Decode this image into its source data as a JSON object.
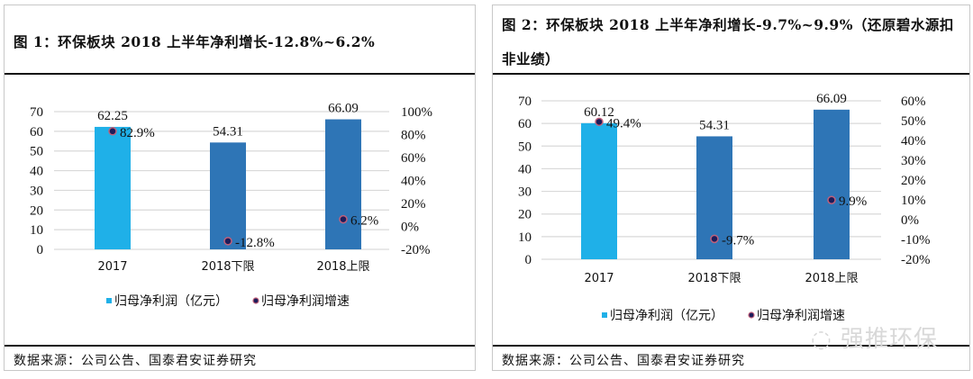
{
  "watermark": "强推环保",
  "colors": {
    "bar_2017": "#1fb0e8",
    "bar_2018": "#2e75b6",
    "dot_fill": "#1c1c5a",
    "dot_edge": "#c0607a",
    "grid": "#d9d9d9"
  },
  "chart_data": [
    {
      "type": "bar+scatter",
      "title": "图  1：环保板块 2018 上半年净利增长-12.8%~6.2%",
      "source": "数据来源：公司公告、国泰君安证券研究",
      "categories": [
        "2017",
        "2018下限",
        "2018上限"
      ],
      "series": [
        {
          "name": "归母净利润（亿元）",
          "axis": "left",
          "kind": "bar",
          "values": [
            62.25,
            54.31,
            66.09
          ],
          "labels": [
            "62.25",
            "54.31",
            "66.09"
          ]
        },
        {
          "name": "归母净利润增速",
          "axis": "right",
          "kind": "scatter",
          "values": [
            82.9,
            -12.8,
            6.2
          ],
          "labels": [
            "82.9%",
            "-12.8%",
            "6.2%"
          ]
        }
      ],
      "y_left": {
        "range": [
          0,
          70
        ],
        "ticks": [
          "0",
          "10",
          "20",
          "30",
          "40",
          "50",
          "60",
          "70"
        ]
      },
      "y_right": {
        "range": [
          -20,
          100
        ],
        "ticks": [
          "-20%",
          "0%",
          "20%",
          "40%",
          "60%",
          "80%",
          "100%"
        ]
      },
      "grid": true,
      "legend": "bottom"
    },
    {
      "type": "bar+scatter",
      "title": "图  2：环保板块 2018 上半年净利增长-9.7%~9.9%（还原碧水源扣非业绩）",
      "source": "数据来源：公司公告、国泰君安证券研究",
      "categories": [
        "2017",
        "2018下限",
        "2018上限"
      ],
      "series": [
        {
          "name": "归母净利润（亿元）",
          "axis": "left",
          "kind": "bar",
          "values": [
            60.12,
            54.31,
            66.09
          ],
          "labels": [
            "60.12",
            "54.31",
            "66.09"
          ]
        },
        {
          "name": "归母净利润增速",
          "axis": "right",
          "kind": "scatter",
          "values": [
            49.4,
            -9.7,
            9.9
          ],
          "labels": [
            "49.4%",
            "-9.7%",
            "9.9%"
          ]
        }
      ],
      "y_left": {
        "range": [
          0,
          70
        ],
        "ticks": [
          "0",
          "10",
          "20",
          "30",
          "40",
          "50",
          "60",
          "70"
        ]
      },
      "y_right": {
        "range": [
          -20,
          60
        ],
        "ticks": [
          "-20%",
          "-10%",
          "0%",
          "10%",
          "20%",
          "30%",
          "40%",
          "50%",
          "60%"
        ]
      },
      "grid": true,
      "legend": "bottom"
    }
  ]
}
